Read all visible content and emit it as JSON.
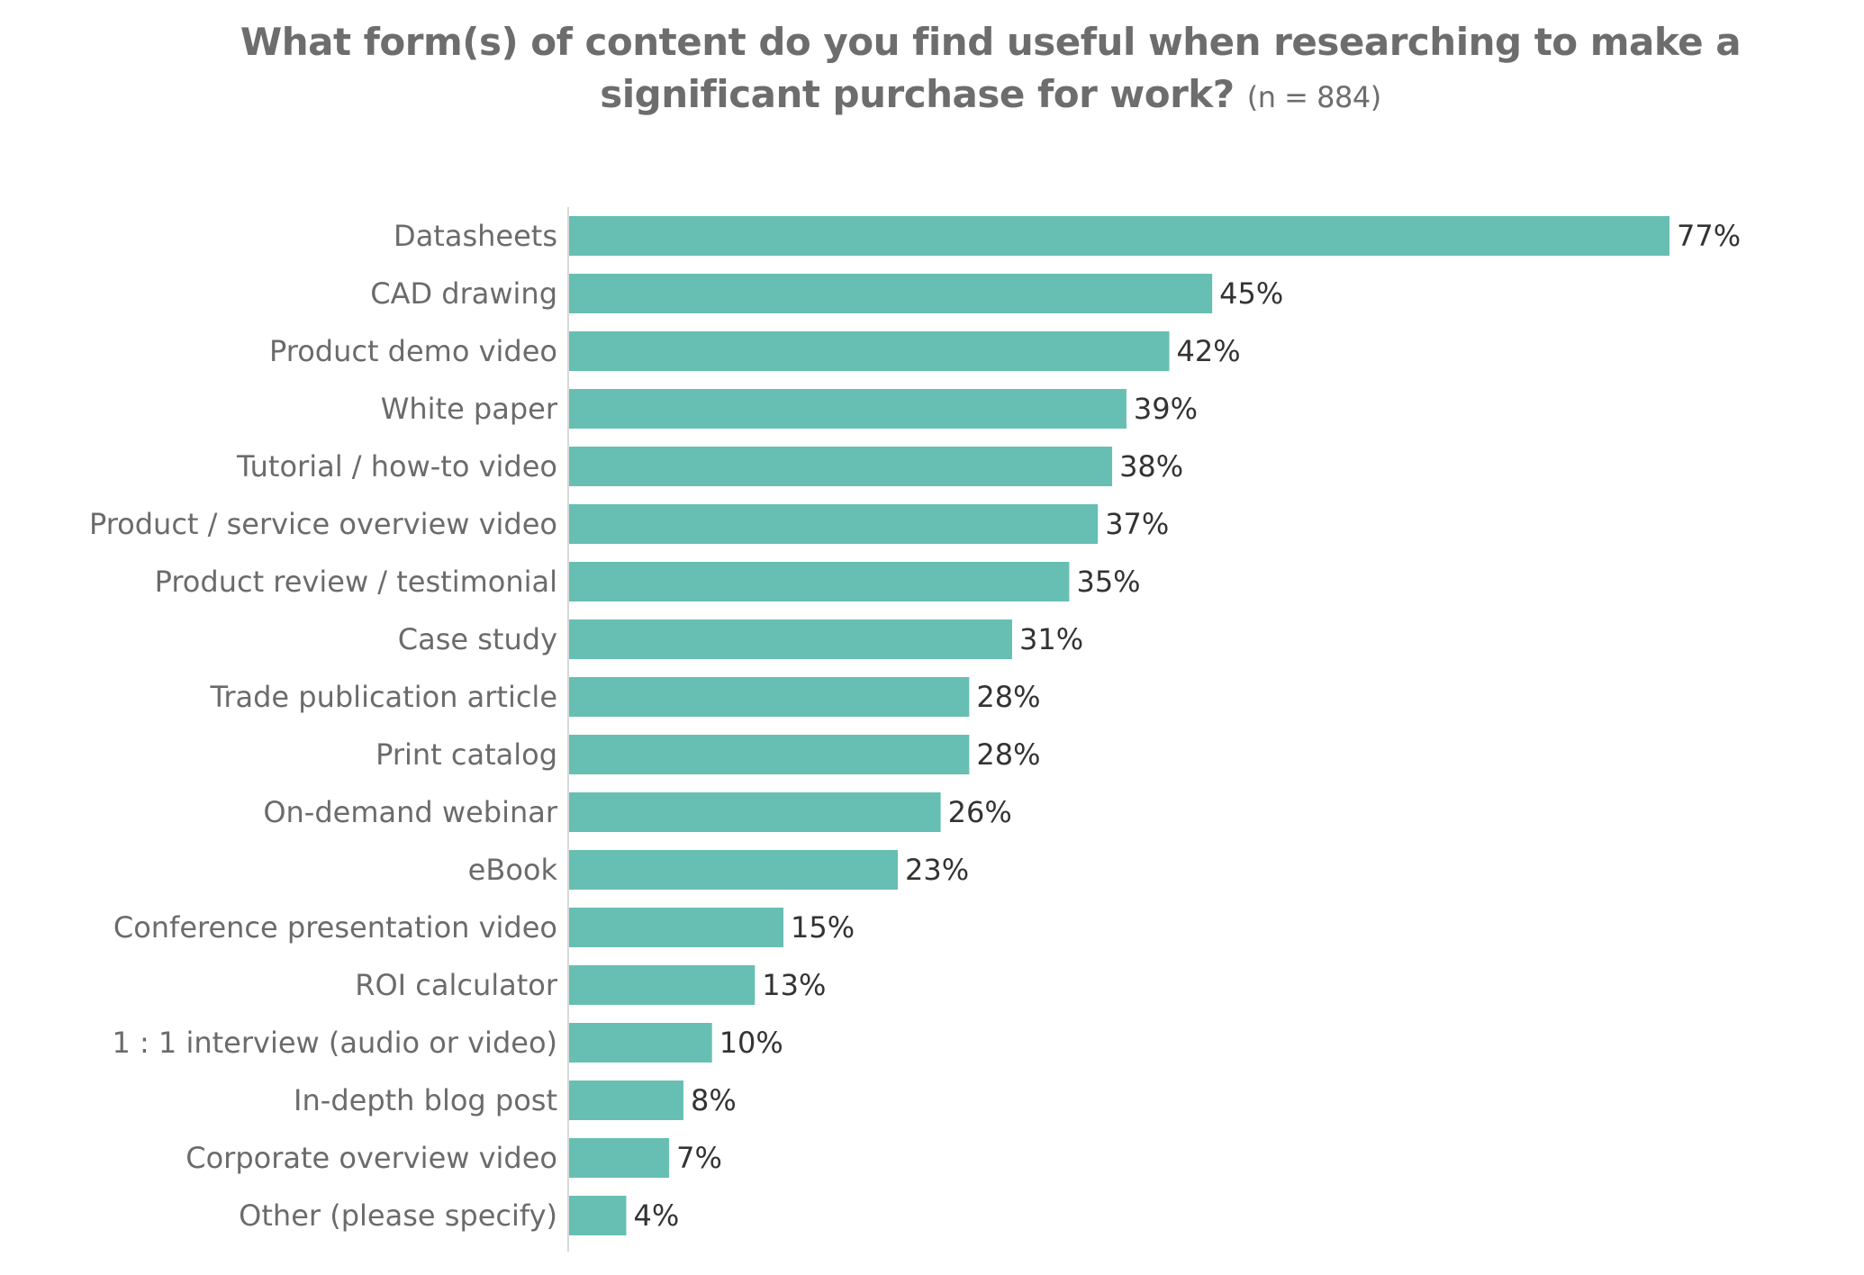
{
  "chart_data": {
    "type": "bar",
    "orientation": "horizontal",
    "title": "What form(s) of content do you find useful when researching to make a significant purchase for work?",
    "subtitle": "(n = 884)",
    "xlabel": "",
    "ylabel": "",
    "xlim": [
      0,
      77
    ],
    "grid": false,
    "legend": "none",
    "bar_color": "#67bfb3",
    "value_suffix": "%",
    "categories": [
      "Datasheets",
      "CAD drawing",
      "Product demo video",
      "White paper",
      "Tutorial / how-to video",
      "Product / service overview video",
      "Product review / testimonial",
      "Case study",
      "Trade publication article",
      "Print catalog",
      "On-demand webinar",
      "eBook",
      "Conference presentation video",
      "ROI calculator",
      "1 : 1 interview (audio or video)",
      "In-depth blog post",
      "Corporate overview video",
      "Other (please specify)"
    ],
    "values": [
      77,
      45,
      42,
      39,
      38,
      37,
      35,
      31,
      28,
      28,
      26,
      23,
      15,
      13,
      10,
      8,
      7,
      4
    ],
    "value_labels": [
      "77%",
      "45%",
      "42%",
      "39%",
      "38%",
      "37%",
      "35%",
      "31%",
      "28%",
      "28%",
      "26%",
      "23%",
      "15%",
      "13%",
      "10%",
      "8%",
      "7%",
      "4%"
    ]
  }
}
